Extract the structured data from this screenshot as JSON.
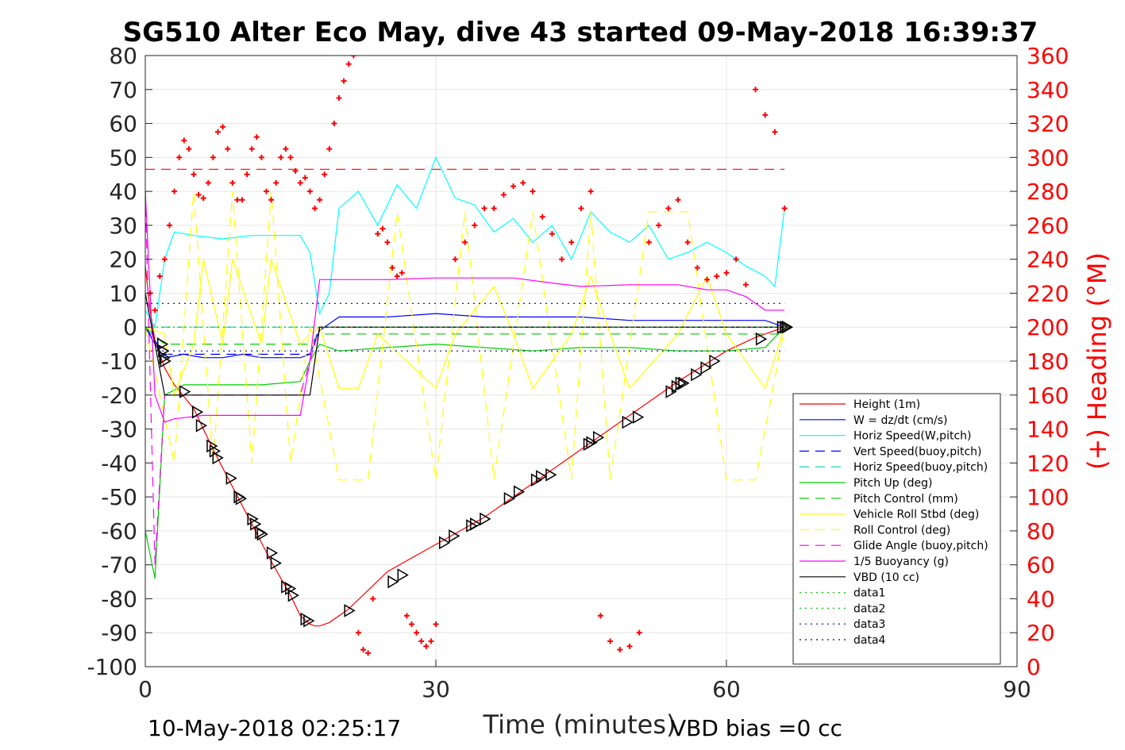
{
  "chart_data": {
    "type": "line",
    "title": "SG510 Alter Eco May, dive 43 started 09-May-2018 16:39:37",
    "xlabel": "Time (minutes)",
    "ylabel_right": "(+) Heading (°M)",
    "xlim": [
      0,
      90
    ],
    "ylim_left": [
      -100,
      80
    ],
    "ylim_right": [
      0,
      360
    ],
    "x_ticks": [
      "0",
      "30",
      "60",
      "90"
    ],
    "y_ticks_left": [
      "80",
      "70",
      "60",
      "50",
      "40",
      "30",
      "20",
      "10",
      "0",
      "-10",
      "-20",
      "-30",
      "-40",
      "-50",
      "-60",
      "-70",
      "-80",
      "-90",
      "-100"
    ],
    "y_ticks_right": [
      "360",
      "340",
      "320",
      "300",
      "280",
      "260",
      "240",
      "220",
      "200",
      "180",
      "160",
      "140",
      "120",
      "100",
      "80",
      "60",
      "40",
      "20",
      "0"
    ],
    "grid": true,
    "legend_position": "bottom-right",
    "footer_left": "10-May-2018 02:25:17",
    "footer_right": "VBD bias =0 cc",
    "series": [
      {
        "name": "Height (1m)",
        "color": "#ff0000",
        "style": "solid",
        "x": [
          0,
          0.5,
          1,
          2,
          3,
          5,
          7,
          9,
          11,
          13,
          15,
          16,
          17,
          17.5,
          18,
          19,
          21,
          25,
          30,
          35,
          40,
          45,
          50,
          55,
          60,
          63,
          66
        ],
        "y": [
          18,
          5,
          -4,
          -12,
          -17,
          -24,
          -36,
          -47,
          -58,
          -69,
          -79,
          -85,
          -87.5,
          -88,
          -88,
          -87,
          -83,
          -72,
          -64,
          -56,
          -46,
          -36,
          -26,
          -16,
          -7,
          -3,
          0
        ]
      },
      {
        "name": "W = dz/dt (cm/s)",
        "color": "#0000ff",
        "style": "solid",
        "x": [
          0,
          1,
          2,
          4,
          6,
          8,
          10,
          12,
          14,
          16,
          17,
          18,
          20,
          25,
          30,
          35,
          40,
          45,
          50,
          55,
          60,
          64,
          66
        ],
        "y": [
          0,
          -5,
          -9,
          -8,
          -9,
          -9,
          -8,
          -9,
          -9,
          -9,
          -8,
          -1,
          3,
          3,
          4,
          3,
          3,
          3,
          2,
          2,
          2,
          2,
          0
        ]
      },
      {
        "name": "Horiz Speed(W,pitch)",
        "color": "#00ffff",
        "style": "solid",
        "x": [
          0,
          1,
          2,
          3,
          5,
          8,
          11,
          14,
          16,
          17,
          18,
          19,
          20,
          22,
          24,
          26,
          28,
          30,
          32,
          34,
          36,
          38,
          40,
          42,
          44,
          46,
          48,
          50,
          52,
          54,
          56,
          58,
          60,
          62,
          64,
          65,
          66
        ],
        "y": [
          5,
          0,
          20,
          28,
          27,
          26,
          27,
          27,
          27,
          22,
          4,
          10,
          35,
          40,
          30,
          42,
          35,
          50,
          38,
          36,
          28,
          32,
          25,
          30,
          20,
          34,
          28,
          25,
          30,
          20,
          22,
          25,
          22,
          18,
          15,
          12,
          35
        ]
      },
      {
        "name": "Vert Speed(buoy,pitch)",
        "color": "#0000ff",
        "style": "dash",
        "x": [
          0,
          2,
          17,
          18,
          66
        ],
        "y": [
          0,
          -8,
          -8,
          0,
          0
        ]
      },
      {
        "name": "Horiz Speed(buoy,pitch)",
        "color": "#00cccc",
        "style": "dash",
        "x": [
          0,
          2,
          17,
          18,
          66
        ],
        "y": [
          0,
          0,
          0,
          0,
          0
        ]
      },
      {
        "name": "Pitch Up (deg)",
        "color": "#00cc00",
        "style": "solid",
        "x": [
          0,
          1,
          2,
          4,
          8,
          12,
          16,
          17,
          18,
          20,
          25,
          30,
          35,
          40,
          45,
          50,
          55,
          60,
          64,
          66
        ],
        "y": [
          -60,
          -74,
          -20,
          -17,
          -17,
          -17,
          -16,
          -10,
          -5,
          -7,
          -6,
          -5,
          -6,
          -7,
          -6,
          -6,
          -7,
          -7,
          -6,
          0
        ]
      },
      {
        "name": "Pitch Control (mm)",
        "color": "#00cc00",
        "style": "dash",
        "x": [
          0,
          2,
          17,
          18,
          66
        ],
        "y": [
          0,
          -5,
          -5,
          -2,
          -2
        ]
      },
      {
        "name": "Vehicle Roll Stbd (deg)",
        "color": "#ffff00",
        "style": "solid",
        "x": [
          0,
          2,
          3,
          5,
          6,
          8,
          9,
          12,
          13,
          16,
          17,
          18,
          20,
          22,
          24,
          30,
          32,
          36,
          38,
          40,
          44,
          46,
          48,
          50,
          55,
          58,
          60,
          64,
          66
        ],
        "y": [
          0,
          -2,
          -20,
          -5,
          20,
          -5,
          20,
          -5,
          20,
          -5,
          -2,
          0,
          -18,
          -18,
          -2,
          -18,
          -2,
          12,
          -2,
          -18,
          -2,
          15,
          -2,
          -18,
          -2,
          15,
          -2,
          -18,
          0
        ]
      },
      {
        "name": "Roll Control (deg)",
        "color": "#ffff00",
        "style": "dash",
        "x": [
          0,
          3,
          5,
          7,
          9,
          11,
          13,
          15,
          17,
          20,
          23,
          26,
          30,
          33,
          36,
          40,
          44,
          46,
          48,
          52,
          56,
          60,
          63,
          66
        ],
        "y": [
          0,
          -40,
          40,
          -40,
          40,
          -40,
          40,
          -40,
          0,
          -45,
          -45,
          34,
          -45,
          34,
          -45,
          34,
          -45,
          34,
          -45,
          34,
          34,
          -45,
          -45,
          0
        ]
      },
      {
        "name": "Glide Angle (buoy,pitch)",
        "color": "#ff00ff",
        "style": "dash",
        "x": [
          0,
          1,
          2,
          3,
          5,
          8,
          12,
          16,
          17,
          18,
          66
        ],
        "y": [
          40,
          -70,
          -20,
          -20,
          -20,
          -20,
          -20,
          -20,
          -10,
          0,
          0
        ]
      },
      {
        "name": "1/5 Buoyancy (g)",
        "color": "#ff00ff",
        "style": "solid",
        "x": [
          0,
          1,
          2,
          3,
          6,
          10,
          14,
          16,
          17,
          18,
          25,
          30,
          38,
          42,
          45,
          50,
          55,
          58,
          60,
          62,
          64,
          66
        ],
        "y": [
          40,
          -20,
          -28,
          -27,
          -26,
          -26,
          -26,
          -26,
          -10,
          14,
          14,
          14.5,
          14.5,
          13,
          12,
          12.5,
          12.5,
          11,
          11,
          9,
          5,
          5
        ]
      },
      {
        "name": "VBD (10 cc)",
        "color": "#000000",
        "style": "solid",
        "x": [
          0,
          2,
          17,
          18,
          66
        ],
        "y": [
          10,
          -20,
          -20,
          0,
          0
        ]
      },
      {
        "name": "data1",
        "color": "#00cc00",
        "style": "dot",
        "x": [
          0,
          66
        ],
        "y": [
          0,
          0
        ]
      },
      {
        "name": "data2",
        "color": "#00cc00",
        "style": "dot",
        "x": [
          0,
          66
        ],
        "y": [
          0,
          0
        ]
      },
      {
        "name": "data3",
        "color": "#000080",
        "style": "dot",
        "x": [
          0,
          66
        ],
        "y": [
          -7,
          -7
        ]
      },
      {
        "name": "data4",
        "color": "#000080",
        "style": "dot",
        "x": [
          0,
          66
        ],
        "y": [
          7,
          7
        ]
      }
    ],
    "heading_reference": {
      "color": "#ff0000",
      "style": "dash",
      "x": [
        0,
        66
      ],
      "y_right": [
        293,
        293
      ]
    },
    "heading_points": {
      "name": "(+) Heading",
      "color": "#ff0000",
      "x": [
        0.5,
        1,
        1.5,
        2,
        2.5,
        3,
        3.5,
        4,
        4.5,
        5,
        5.5,
        6,
        6.5,
        7,
        7.5,
        8,
        8.5,
        9,
        9.5,
        10,
        10.5,
        11,
        11.5,
        12,
        12.5,
        13,
        13.5,
        14,
        14.5,
        15,
        15.5,
        16,
        16.5,
        17,
        17.5,
        18,
        18.5,
        19,
        19.5,
        20,
        20.5,
        21,
        21.5,
        22,
        22.5,
        23,
        23.5,
        24,
        24.5,
        25,
        25.5,
        26,
        26.5,
        27,
        27.5,
        28,
        28.5,
        29,
        29.5,
        30,
        32,
        33,
        34,
        35,
        36,
        37,
        38,
        39,
        40,
        41,
        42,
        43,
        44,
        45,
        46,
        47,
        48,
        49,
        50,
        51,
        52,
        53,
        54,
        55,
        56,
        57,
        58,
        59,
        60,
        61,
        62,
        63,
        64,
        65,
        66
      ],
      "y": [
        220,
        210,
        230,
        240,
        260,
        280,
        300,
        310,
        305,
        290,
        278,
        276,
        285,
        300,
        315,
        318,
        305,
        285,
        275,
        275,
        290,
        305,
        312,
        300,
        280,
        275,
        285,
        300,
        305,
        300,
        292,
        285,
        288,
        280,
        270,
        275,
        290,
        305,
        320,
        335,
        345,
        355,
        360,
        20,
        10,
        8,
        40,
        255,
        258,
        250,
        235,
        230,
        232,
        30,
        25,
        20,
        15,
        12,
        15,
        25,
        240,
        250,
        260,
        270,
        270,
        278,
        283,
        285,
        280,
        265,
        255,
        240,
        250,
        270,
        280,
        30,
        15,
        10,
        12,
        20,
        250,
        260,
        270,
        275,
        250,
        235,
        228,
        230,
        232,
        240,
        225,
        340,
        325,
        315,
        270
      ]
    },
    "markers": {
      "name": "triangles",
      "color": "#000000",
      "x": [
        1.7,
        1.8,
        1.9,
        2.0,
        4,
        5.3,
        5.7,
        6.8,
        7.1,
        7.4,
        8.8,
        9.6,
        9.8,
        11.0,
        11.3,
        11.8,
        12.0,
        13.0,
        13.4,
        14.5,
        14.9,
        15.2,
        16.5,
        16.8,
        21.0,
        25.5,
        26.5,
        30.8,
        31.8,
        33.6,
        34.0,
        35.0,
        37.5,
        38.5,
        40.3,
        40.8,
        41.8,
        45.7,
        46.0,
        46.7,
        49.7,
        50.8,
        54.2,
        54.8,
        55.2,
        55.5,
        56.8,
        57.8,
        58.7,
        63.5,
        65.7,
        66.0,
        66.2
      ],
      "y": [
        -5,
        -7,
        -9,
        -10,
        -19,
        -25,
        -29,
        -35,
        -36.5,
        -38.5,
        -44.5,
        -50,
        -50.5,
        -56.5,
        -58,
        -60.5,
        -61,
        -66.5,
        -69.5,
        -76.5,
        -77,
        -79,
        -86,
        -86.5,
        -83.5,
        -75,
        -73,
        -63.5,
        -61.5,
        -58.5,
        -58,
        -56.5,
        -50.5,
        -48.5,
        -45,
        -44,
        -43.5,
        -34.5,
        -34,
        -32.5,
        -28,
        -26.5,
        -19,
        -17.5,
        -16.5,
        -16.5,
        -14,
        -12,
        -10,
        -3.5,
        0,
        0,
        0
      ]
    }
  }
}
